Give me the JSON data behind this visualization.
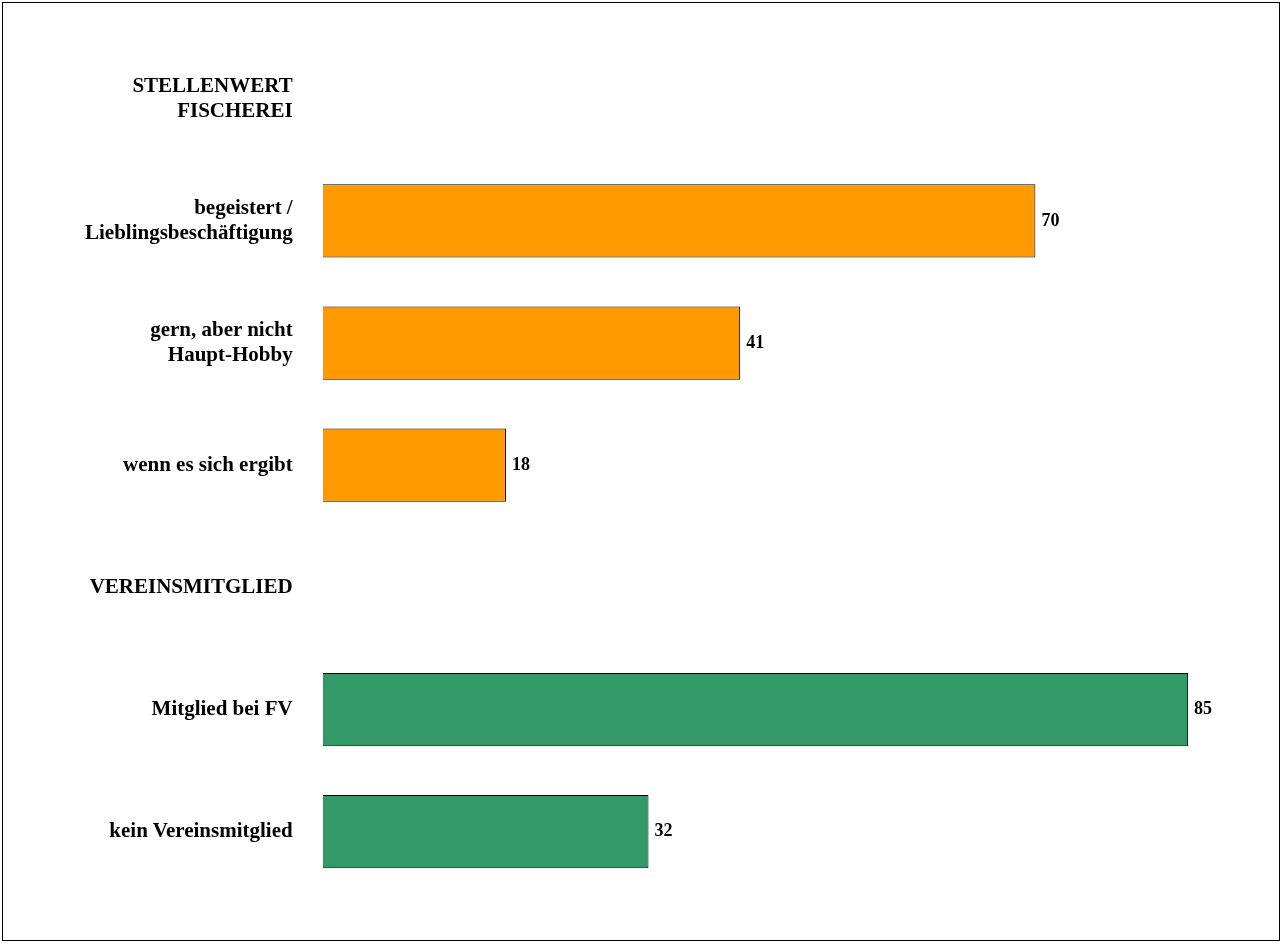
{
  "chart_data": {
    "type": "bar",
    "orientation": "horizontal",
    "categories": [
      "STELLENWERT FISCHEREI",
      "begeistert / Lieblingsbeschäftigung",
      "gern, aber nicht Haupt-Hobby",
      "wenn es sich ergibt",
      "VEREINSMITGLIED",
      "Mitglied bei FV",
      "kein Vereinsmitglied"
    ],
    "values": [
      null,
      70,
      41,
      18,
      null,
      85,
      32
    ],
    "colors": [
      null,
      "#ff9900",
      "#ff9900",
      "#ff9900",
      null,
      "#339966",
      "#339966"
    ],
    "data_labels": true,
    "grid": false,
    "legend": false
  }
}
